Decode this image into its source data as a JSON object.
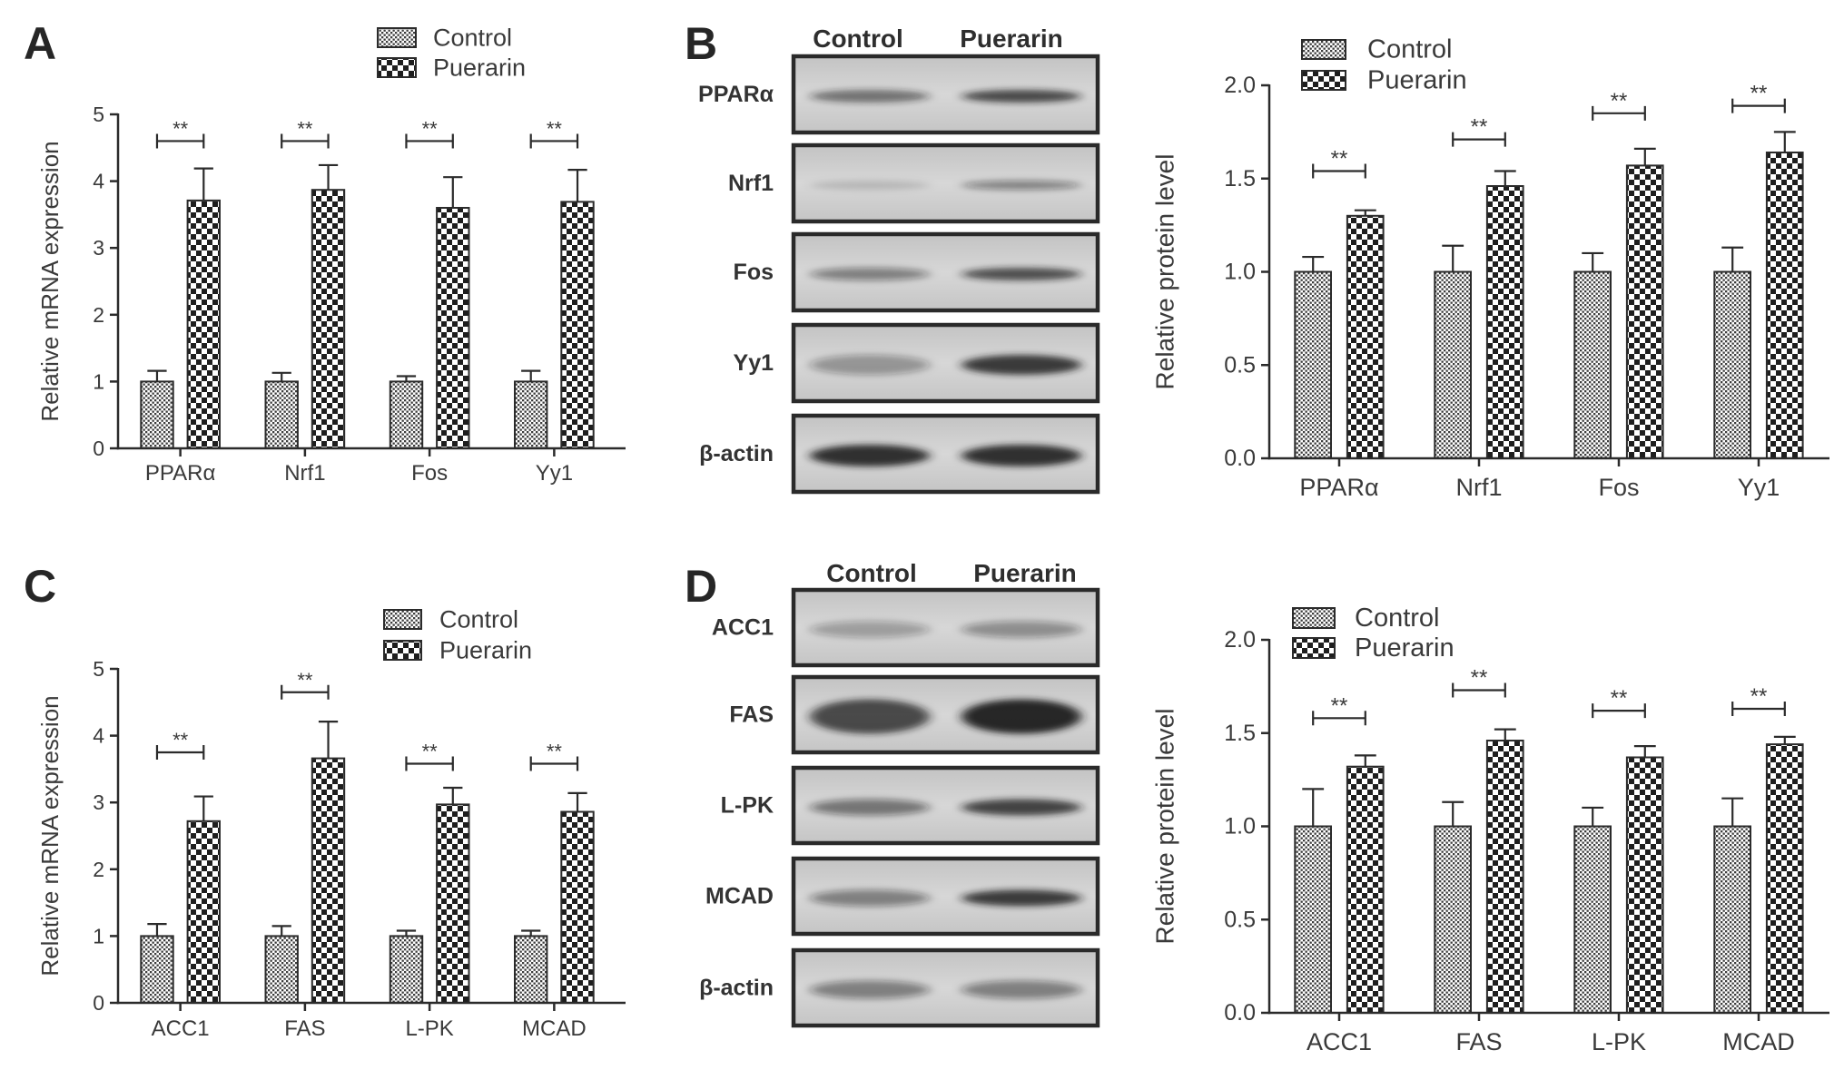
{
  "panels": [
    {
      "letter": "A"
    },
    {
      "letter": "B"
    },
    {
      "letter": "C"
    },
    {
      "letter": "D"
    }
  ],
  "chart_data": [
    {
      "type": "bar",
      "title": "",
      "xlabel": "",
      "ylabel": "Relative mRNA expression",
      "ylim": [
        0,
        5
      ],
      "yticks": [
        "0",
        "1",
        "2",
        "3",
        "4",
        "5"
      ],
      "categories": [
        "PPARα",
        "Nrf1",
        "Fos",
        "Yy1"
      ],
      "series": [
        {
          "name": "Control",
          "values": [
            1.0,
            1.0,
            1.0,
            1.0
          ],
          "error": [
            0.16,
            0.13,
            0.08,
            0.16
          ],
          "fill": "fine-checker"
        },
        {
          "name": "Puerarin",
          "values": [
            3.71,
            3.87,
            3.6,
            3.69
          ],
          "error": [
            0.48,
            0.37,
            0.46,
            0.48
          ],
          "fill": "coarse-checker"
        }
      ],
      "significance": [
        "**",
        "**",
        "**",
        "**"
      ],
      "legend": "top",
      "grid": false
    },
    {
      "type": "bar",
      "title": "",
      "xlabel": "",
      "ylabel": "Relative protein level",
      "ylim": [
        0,
        2
      ],
      "yticks": [
        "0.0",
        "0.5",
        "1.0",
        "1.5",
        "2.0"
      ],
      "categories": [
        "PPARα",
        "Nrf1",
        "Fos",
        "Yy1"
      ],
      "series": [
        {
          "name": "Control",
          "values": [
            1.0,
            1.0,
            1.0,
            1.0
          ],
          "error": [
            0.08,
            0.14,
            0.1,
            0.13
          ],
          "fill": "fine-checker"
        },
        {
          "name": "Puerarin",
          "values": [
            1.3,
            1.46,
            1.57,
            1.64
          ],
          "error": [
            0.03,
            0.08,
            0.09,
            0.11
          ],
          "fill": "coarse-checker"
        }
      ],
      "significance": [
        "**",
        "**",
        "**",
        "**"
      ],
      "legend": "top-left",
      "grid": false
    },
    {
      "type": "bar",
      "title": "",
      "xlabel": "",
      "ylabel": "Relative mRNA expression",
      "ylim": [
        0,
        5
      ],
      "yticks": [
        "0",
        "1",
        "2",
        "3",
        "4",
        "5"
      ],
      "categories": [
        "ACC1",
        "FAS",
        "L-PK",
        "MCAD"
      ],
      "series": [
        {
          "name": "Control",
          "values": [
            1.0,
            1.0,
            1.0,
            1.0
          ],
          "error": [
            0.18,
            0.15,
            0.08,
            0.08
          ],
          "fill": "fine-checker"
        },
        {
          "name": "Puerarin",
          "values": [
            2.72,
            3.66,
            2.97,
            2.86
          ],
          "error": [
            0.37,
            0.55,
            0.25,
            0.28
          ],
          "fill": "coarse-checker"
        }
      ],
      "significance": [
        "**",
        "**",
        "**",
        "**"
      ],
      "legend": "top",
      "grid": false
    },
    {
      "type": "bar",
      "title": "",
      "xlabel": "",
      "ylabel": "Relative protein level",
      "ylim": [
        0,
        2
      ],
      "yticks": [
        "0.0",
        "0.5",
        "1.0",
        "1.5",
        "2.0"
      ],
      "categories": [
        "ACC1",
        "FAS",
        "L-PK",
        "MCAD"
      ],
      "series": [
        {
          "name": "Control",
          "values": [
            1.0,
            1.0,
            1.0,
            1.0
          ],
          "error": [
            0.2,
            0.13,
            0.1,
            0.15
          ],
          "fill": "fine-checker"
        },
        {
          "name": "Puerarin",
          "values": [
            1.32,
            1.46,
            1.37,
            1.44
          ],
          "error": [
            0.06,
            0.06,
            0.06,
            0.04
          ],
          "fill": "coarse-checker"
        }
      ],
      "significance": [
        "**",
        "**",
        "**",
        "**"
      ],
      "legend": "top-left",
      "grid": false
    }
  ],
  "blots": [
    {
      "lanes": [
        "Control",
        "Puerarin"
      ],
      "rows": [
        "PPARα",
        "Nrf1",
        "Fos",
        "Yy1",
        "β-actin"
      ]
    },
    {
      "lanes": [
        "Control",
        "Puerarin"
      ],
      "rows": [
        "ACC1",
        "FAS",
        "L-PK",
        "MCAD",
        "β-actin"
      ]
    }
  ]
}
